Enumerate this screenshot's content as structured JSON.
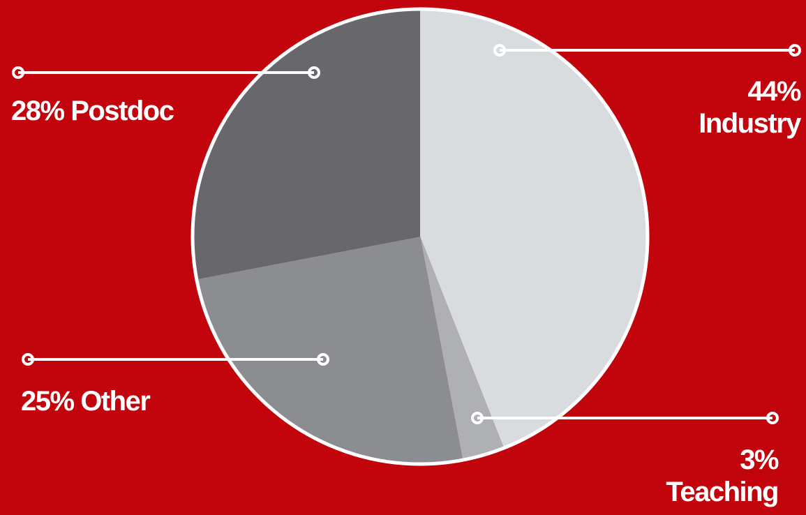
{
  "chart_data": {
    "type": "pie",
    "slices": [
      {
        "label": "Industry",
        "value": 44,
        "pct_text": "44%",
        "color": "#d9dcde"
      },
      {
        "label": "Teaching",
        "value": 3,
        "pct_text": "3%",
        "color": "#aeb0b3"
      },
      {
        "label": "Other",
        "value": 25,
        "pct_text": "25%",
        "color": "#8c8d91"
      },
      {
        "label": "Postdoc",
        "value": 28,
        "pct_text": "28%",
        "color": "#68676c"
      }
    ],
    "title": "",
    "background": "#c2040c",
    "outline_color": "#ffffff"
  }
}
